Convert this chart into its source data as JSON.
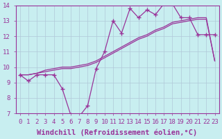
{
  "xlabel": "Windchill (Refroidissement éolien,°C)",
  "background_color": "#c8eef0",
  "grid_color": "#b0c8d8",
  "line_color": "#993399",
  "x_hours": [
    0,
    1,
    2,
    3,
    4,
    5,
    6,
    7,
    8,
    9,
    10,
    11,
    12,
    13,
    14,
    15,
    16,
    17,
    18,
    19,
    20,
    21,
    22,
    23
  ],
  "jagged_line": [
    9.5,
    9.1,
    9.5,
    9.5,
    9.5,
    8.6,
    6.9,
    6.8,
    7.5,
    9.9,
    11.0,
    13.0,
    12.2,
    13.8,
    13.2,
    13.7,
    13.4,
    14.1,
    14.1,
    13.2,
    13.2,
    12.1,
    12.1,
    12.1
  ],
  "smooth_line1": [
    9.5,
    9.5,
    9.6,
    9.7,
    9.8,
    9.9,
    9.9,
    10.0,
    10.1,
    10.3,
    10.6,
    10.9,
    11.2,
    11.5,
    11.8,
    12.0,
    12.3,
    12.5,
    12.8,
    12.9,
    13.0,
    13.1,
    13.1,
    10.4
  ],
  "smooth_line2": [
    9.5,
    9.5,
    9.6,
    9.8,
    9.9,
    10.0,
    10.0,
    10.1,
    10.2,
    10.4,
    10.7,
    11.0,
    11.3,
    11.6,
    11.9,
    12.1,
    12.4,
    12.6,
    12.9,
    13.0,
    13.1,
    13.2,
    13.2,
    10.4
  ],
  "ylim": [
    7,
    14
  ],
  "yticks": [
    7,
    8,
    9,
    10,
    11,
    12,
    13,
    14
  ],
  "xtick_labels": [
    "0",
    "1",
    "2",
    "3",
    "4",
    "5",
    "6",
    "7",
    "8",
    "9",
    "10",
    "11",
    "12",
    "13",
    "14",
    "15",
    "16",
    "17",
    "18",
    "19",
    "20",
    "21",
    "22",
    "23"
  ],
  "tick_fontsize": 6.5,
  "xlabel_fontsize": 7.5,
  "figsize": [
    3.2,
    2.0
  ],
  "dpi": 100
}
